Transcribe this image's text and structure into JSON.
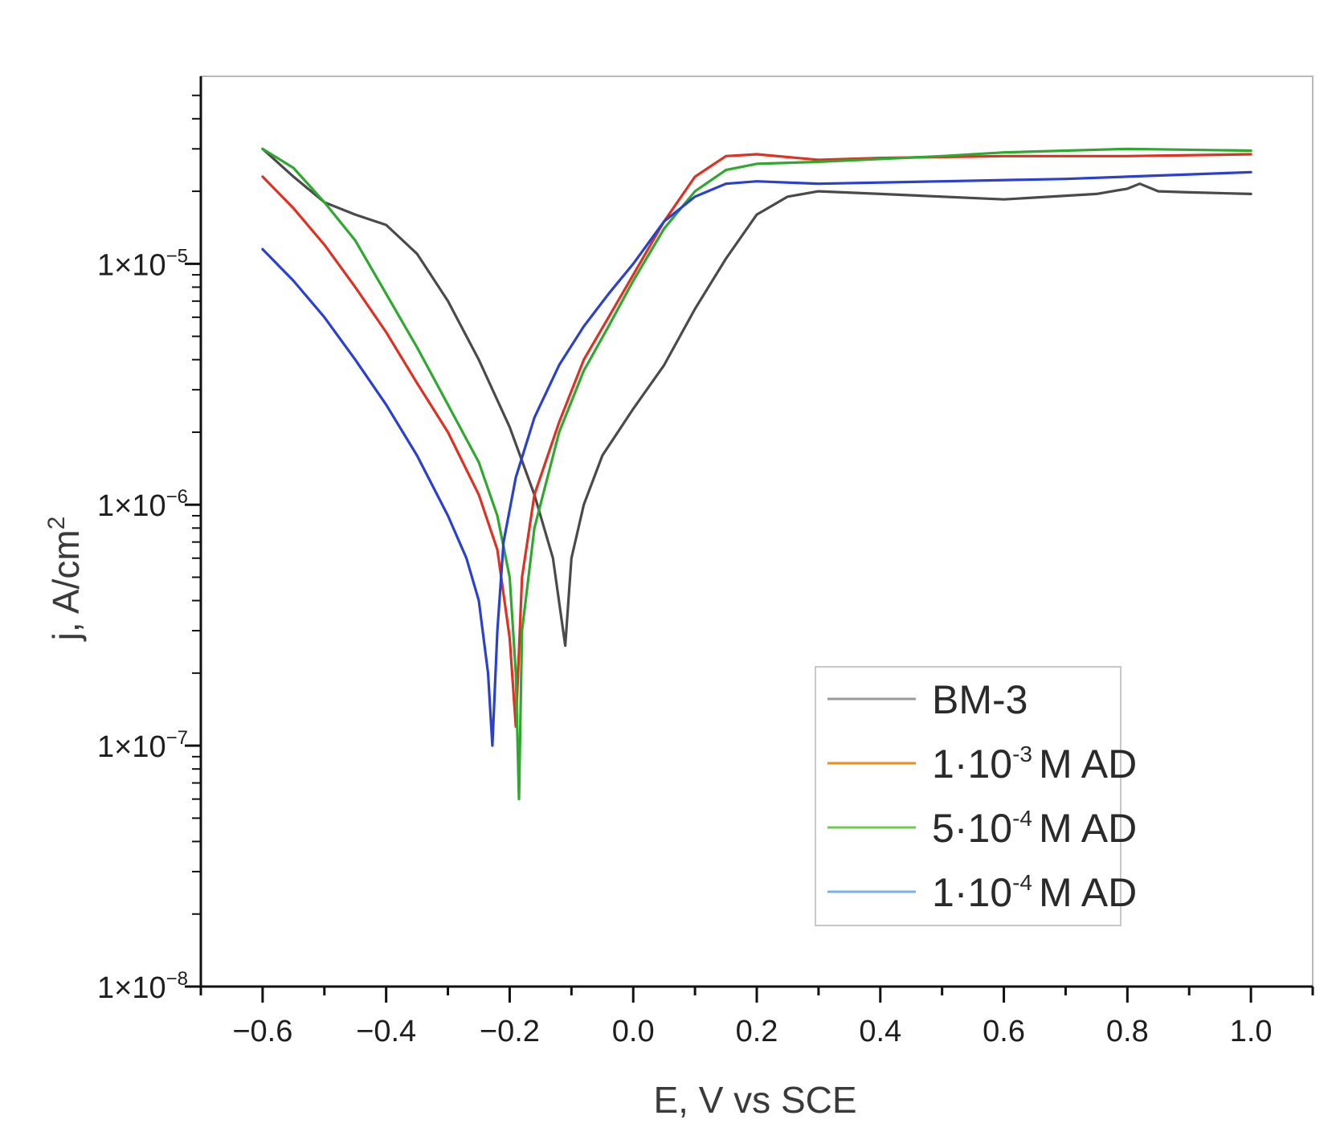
{
  "chart_data": {
    "type": "line",
    "title": "",
    "xlabel": "E, V vs SCE",
    "ylabel": "j, A/cm",
    "ylabel_sup": "2",
    "xscale": "linear",
    "yscale": "log",
    "xlim": [
      -0.7,
      1.1
    ],
    "ylim": [
      1e-08,
      6e-05
    ],
    "grid": false,
    "legend_position": "bottom-right",
    "x_ticks": [
      {
        "value": -0.6,
        "label": "−0.6"
      },
      {
        "value": -0.4,
        "label": "−0.4"
      },
      {
        "value": -0.2,
        "label": "−0.2"
      },
      {
        "value": 0.0,
        "label": "0.0"
      },
      {
        "value": 0.2,
        "label": "0.2"
      },
      {
        "value": 0.4,
        "label": "0.4"
      },
      {
        "value": 0.6,
        "label": "0.6"
      },
      {
        "value": 0.8,
        "label": "0.8"
      },
      {
        "value": 1.0,
        "label": "1.0"
      }
    ],
    "y_ticks": [
      {
        "value": 1e-05,
        "base": "1×10",
        "exp": "−5"
      },
      {
        "value": 1e-06,
        "base": "1×10",
        "exp": "−6"
      },
      {
        "value": 1e-07,
        "base": "1×10",
        "exp": "−7"
      },
      {
        "value": 1e-08,
        "base": "1×10",
        "exp": "−8"
      }
    ],
    "series": [
      {
        "name": "BM-3",
        "legend_main": "BM-3",
        "legend_sup": "",
        "legend_tail": "",
        "color": "#4a4a4a",
        "legend_color": "#9a9a9a",
        "x": [
          -0.6,
          -0.55,
          -0.5,
          -0.45,
          -0.4,
          -0.35,
          -0.3,
          -0.25,
          -0.2,
          -0.16,
          -0.13,
          -0.11,
          -0.1,
          -0.08,
          -0.05,
          0.0,
          0.05,
          0.1,
          0.15,
          0.2,
          0.25,
          0.3,
          0.4,
          0.6,
          0.75,
          0.8,
          0.82,
          0.85,
          0.9,
          1.0
        ],
        "y": [
          3e-05,
          2.3e-05,
          1.8e-05,
          1.6e-05,
          1.45e-05,
          1.1e-05,
          7e-06,
          4e-06,
          2.1e-06,
          1.1e-06,
          6e-07,
          2.6e-07,
          6e-07,
          1e-06,
          1.6e-06,
          2.5e-06,
          3.8e-06,
          6.5e-06,
          1.05e-05,
          1.6e-05,
          1.9e-05,
          2e-05,
          1.95e-05,
          1.85e-05,
          1.95e-05,
          2.05e-05,
          2.15e-05,
          2e-05,
          1.98e-05,
          1.95e-05
        ]
      },
      {
        "name": "1·10-3 M AD",
        "legend_main": "1·10",
        "legend_sup": "-3",
        "legend_tail": "M AD",
        "color": "#e03020",
        "legend_color": "#f08a1a",
        "x": [
          -0.6,
          -0.55,
          -0.5,
          -0.45,
          -0.4,
          -0.35,
          -0.3,
          -0.25,
          -0.22,
          -0.2,
          -0.19,
          -0.18,
          -0.16,
          -0.12,
          -0.08,
          -0.04,
          0.0,
          0.05,
          0.1,
          0.15,
          0.2,
          0.3,
          0.4,
          0.6,
          0.8,
          1.0
        ],
        "y": [
          2.3e-05,
          1.7e-05,
          1.2e-05,
          8e-06,
          5.2e-06,
          3.2e-06,
          2e-06,
          1.1e-06,
          6.5e-07,
          2.8e-07,
          1.2e-07,
          5e-07,
          1.1e-06,
          2.2e-06,
          4e-06,
          6e-06,
          9e-06,
          1.5e-05,
          2.3e-05,
          2.8e-05,
          2.85e-05,
          2.7e-05,
          2.75e-05,
          2.8e-05,
          2.8e-05,
          2.85e-05
        ]
      },
      {
        "name": "5·10-4 M AD",
        "legend_main": "5·10",
        "legend_sup": "-4",
        "legend_tail": "M AD",
        "color": "#2ea82e",
        "legend_color": "#6ccc50",
        "x": [
          -0.6,
          -0.55,
          -0.5,
          -0.45,
          -0.4,
          -0.35,
          -0.3,
          -0.25,
          -0.22,
          -0.2,
          -0.19,
          -0.185,
          -0.18,
          -0.16,
          -0.12,
          -0.08,
          -0.04,
          0.0,
          0.05,
          0.1,
          0.15,
          0.2,
          0.3,
          0.5,
          0.6,
          0.8,
          1.0
        ],
        "y": [
          3e-05,
          2.5e-05,
          1.8e-05,
          1.25e-05,
          7.5e-06,
          4.5e-06,
          2.6e-06,
          1.5e-06,
          9e-07,
          5e-07,
          2e-07,
          6e-08,
          3e-07,
          8e-07,
          2e-06,
          3.6e-06,
          5.5e-06,
          8.5e-06,
          1.4e-05,
          2e-05,
          2.45e-05,
          2.6e-05,
          2.65e-05,
          2.8e-05,
          2.9e-05,
          3e-05,
          2.95e-05
        ]
      },
      {
        "name": "1·10-4 M AD",
        "legend_main": "1·10",
        "legend_sup": "-4",
        "legend_tail": "M AD",
        "color": "#2a40d0",
        "legend_color": "#7ab0e8",
        "x": [
          -0.6,
          -0.55,
          -0.5,
          -0.45,
          -0.4,
          -0.35,
          -0.3,
          -0.27,
          -0.25,
          -0.235,
          -0.228,
          -0.22,
          -0.21,
          -0.19,
          -0.16,
          -0.12,
          -0.08,
          -0.04,
          0.0,
          0.05,
          0.1,
          0.15,
          0.2,
          0.3,
          0.5,
          0.7,
          0.8,
          1.0
        ],
        "y": [
          1.15e-05,
          8.5e-06,
          6e-06,
          4e-06,
          2.6e-06,
          1.6e-06,
          9e-07,
          6e-07,
          4e-07,
          2e-07,
          1e-07,
          3e-07,
          7e-07,
          1.3e-06,
          2.3e-06,
          3.8e-06,
          5.5e-06,
          7.5e-06,
          1e-05,
          1.5e-05,
          1.9e-05,
          2.15e-05,
          2.2e-05,
          2.15e-05,
          2.2e-05,
          2.25e-05,
          2.3e-05,
          2.4e-05
        ]
      }
    ]
  }
}
